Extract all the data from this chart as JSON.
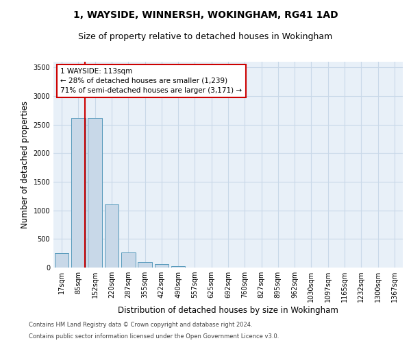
{
  "title1": "1, WAYSIDE, WINNERSH, WOKINGHAM, RG41 1AD",
  "title2": "Size of property relative to detached houses in Wokingham",
  "xlabel": "Distribution of detached houses by size in Wokingham",
  "ylabel": "Number of detached properties",
  "footer1": "Contains HM Land Registry data © Crown copyright and database right 2024.",
  "footer2": "Contains public sector information licensed under the Open Government Licence v3.0.",
  "bin_labels": [
    "17sqm",
    "85sqm",
    "152sqm",
    "220sqm",
    "287sqm",
    "355sqm",
    "422sqm",
    "490sqm",
    "557sqm",
    "625sqm",
    "692sqm",
    "760sqm",
    "827sqm",
    "895sqm",
    "962sqm",
    "1030sqm",
    "1097sqm",
    "1165sqm",
    "1232sqm",
    "1300sqm",
    "1367sqm"
  ],
  "bar_heights": [
    250,
    2620,
    2620,
    1100,
    260,
    100,
    55,
    30,
    0,
    0,
    0,
    0,
    0,
    0,
    0,
    0,
    0,
    0,
    0,
    0,
    0
  ],
  "bar_color": "#c8d8e8",
  "bar_edge_color": "#5599bb",
  "annotation_text": "1 WAYSIDE: 113sqm\n← 28% of detached houses are smaller (1,239)\n71% of semi-detached houses are larger (3,171) →",
  "annotation_box_color": "#ffffff",
  "annotation_box_edge": "#cc0000",
  "vline_color": "#cc0000",
  "ylim": [
    0,
    3600
  ],
  "yticks": [
    0,
    500,
    1000,
    1500,
    2000,
    2500,
    3000,
    3500
  ],
  "grid_color": "#c8d8e8",
  "bg_color": "#e8f0f8",
  "title_fontsize": 10,
  "subtitle_fontsize": 9,
  "tick_fontsize": 7,
  "ylabel_fontsize": 8.5,
  "xlabel_fontsize": 8.5,
  "footer_fontsize": 6
}
